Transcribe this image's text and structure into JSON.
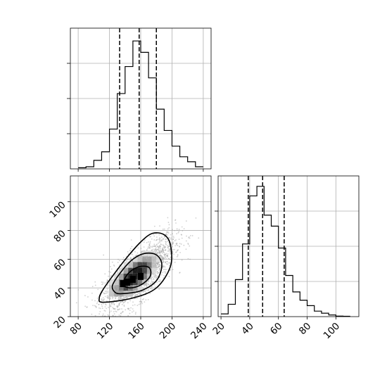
{
  "chart_data": {
    "type": "corner",
    "grid": true,
    "line_color": "#000000",
    "grid_color": "#b0b0b0",
    "panels": [
      {
        "id": "hist-x",
        "type": "histogram",
        "xlim": [
          70,
          250
        ],
        "bins": [
          [
            80,
            90,
            0.008
          ],
          [
            90,
            100,
            0.015
          ],
          [
            100,
            110,
            0.06
          ],
          [
            110,
            120,
            0.12
          ],
          [
            120,
            130,
            0.28
          ],
          [
            130,
            140,
            0.53
          ],
          [
            140,
            150,
            0.72
          ],
          [
            150,
            160,
            0.9
          ],
          [
            160,
            170,
            0.82
          ],
          [
            170,
            180,
            0.64
          ],
          [
            180,
            190,
            0.42
          ],
          [
            190,
            200,
            0.27
          ],
          [
            200,
            210,
            0.16
          ],
          [
            210,
            220,
            0.085
          ],
          [
            220,
            230,
            0.05
          ],
          [
            230,
            240,
            0.015
          ]
        ],
        "quantile_lines": [
          133,
          158,
          180
        ]
      },
      {
        "id": "hist-y",
        "type": "histogram",
        "xlim": [
          18,
          116
        ],
        "xticks": [
          20,
          40,
          60,
          80,
          100
        ],
        "bins": [
          [
            20,
            25,
            0.02
          ],
          [
            25,
            30,
            0.09
          ],
          [
            30,
            35,
            0.27
          ],
          [
            35,
            40,
            0.53
          ],
          [
            40,
            45,
            0.88
          ],
          [
            45,
            50,
            0.95
          ],
          [
            50,
            55,
            0.74
          ],
          [
            55,
            60,
            0.66
          ],
          [
            60,
            65,
            0.5
          ],
          [
            65,
            70,
            0.3
          ],
          [
            70,
            75,
            0.18
          ],
          [
            75,
            80,
            0.12
          ],
          [
            80,
            85,
            0.08
          ],
          [
            85,
            90,
            0.04
          ],
          [
            90,
            95,
            0.025
          ],
          [
            95,
            100,
            0.012
          ],
          [
            100,
            105,
            0.004
          ],
          [
            105,
            110,
            0.003
          ]
        ],
        "quantile_lines": [
          39,
          49,
          64
        ]
      },
      {
        "id": "scatter-2d",
        "type": "scatter",
        "xlim": [
          70,
          250
        ],
        "ylim": [
          20,
          118
        ],
        "xticks": [
          80,
          120,
          160,
          200,
          240
        ],
        "yticks": [
          20,
          40,
          60,
          80,
          100
        ],
        "mean": [
          158,
          49
        ],
        "std": [
          23,
          12
        ],
        "correlation": 0.7,
        "n_points": 2200,
        "density_peaks": [
          [
            143,
            44
          ],
          [
            150,
            46
          ],
          [
            160,
            48
          ],
          [
            137,
            43
          ]
        ],
        "contours": [
          {
            "level": 1,
            "points": [
              [
                146,
                40
              ],
              [
                160,
                42
              ],
              [
                172,
                48
              ],
              [
                171,
                54
              ],
              [
                160,
                55
              ],
              [
                148,
                52
              ],
              [
                140,
                47
              ],
              [
                138,
                42
              ]
            ]
          },
          {
            "level": 2,
            "points": [
              [
                136,
                36
              ],
              [
                160,
                38
              ],
              [
                180,
                45
              ],
              [
                187,
                56
              ],
              [
                180,
                63
              ],
              [
                165,
                64
              ],
              [
                150,
                60
              ],
              [
                136,
                52
              ],
              [
                124,
                42
              ],
              [
                127,
                37
              ]
            ]
          },
          {
            "level": 3,
            "points": [
              [
                112,
                30
              ],
              [
                150,
                33
              ],
              [
                180,
                40
              ],
              [
                198,
                55
              ],
              [
                198,
                70
              ],
              [
                190,
                77
              ],
              [
                175,
                78
              ],
              [
                160,
                72
              ],
              [
                142,
                61
              ],
              [
                125,
                49
              ],
              [
                112,
                39
              ],
              [
                107,
                33
              ]
            ]
          }
        ]
      }
    ]
  }
}
